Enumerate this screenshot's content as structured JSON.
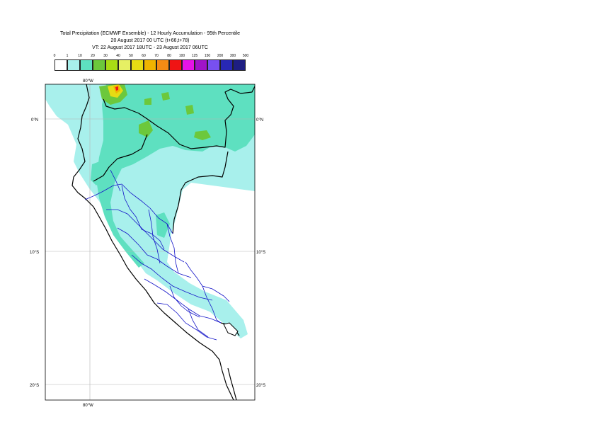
{
  "title": {
    "line1": "Total Precipitation (ECMWF Ensemble) - 12 Hourly Accumulation - 95th Percentile",
    "line2": "20 August 2017 00 UTC (t+66,t+78)",
    "line3": "VT: 22 August 2017 18UTC - 23 August 2017 06UTC"
  },
  "legend": {
    "thresholds": [
      "0",
      "1",
      "10",
      "20",
      "30",
      "40",
      "50",
      "60",
      "70",
      "80",
      "100",
      "125",
      "150",
      "200",
      "300",
      "500"
    ],
    "colors": [
      "#ffffff",
      "#a8f0ec",
      "#5ee0c0",
      "#6cc83c",
      "#a8dc14",
      "#e6f064",
      "#e6dc14",
      "#f0b400",
      "#f58c14",
      "#f01414",
      "#e614e6",
      "#a014c8",
      "#7850f0",
      "#2828b4",
      "#1e1e82"
    ]
  },
  "axes": {
    "lat_top": "0°N",
    "lat_mid": "10°S",
    "lat_bot": "20°S",
    "lon_top": "80°W",
    "lon_bot": "80°W"
  }
}
